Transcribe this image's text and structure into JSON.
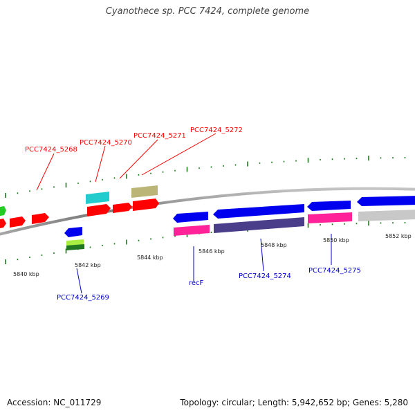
{
  "title": "Cyanothece sp. PCC 7424, complete genome",
  "footer": {
    "accession": "Accession: NC_011729",
    "topology": "Topology: circular; Length: 5,942,652 bp; Genes: 5,280"
  },
  "ticks": [
    {
      "id": "t5840",
      "label": "5840 kbp"
    },
    {
      "id": "t5842",
      "label": "5842 kbp"
    },
    {
      "id": "t5844",
      "label": "5844 kbp"
    },
    {
      "id": "t5846",
      "label": "5846 kbp"
    },
    {
      "id": "t5848",
      "label": "5848 kbp"
    },
    {
      "id": "t5850",
      "label": "5850 kbp"
    },
    {
      "id": "t5852",
      "label": "5852 kbp"
    }
  ],
  "genes_forward": [
    {
      "id": "PCC7424_5268",
      "label": "PCC7424_5268",
      "color": "#ff0000"
    },
    {
      "id": "PCC7424_5270",
      "label": "PCC7424_5270",
      "color": "#ff0000"
    },
    {
      "id": "PCC7424_5271",
      "label": "PCC7424_5271",
      "color": "#ff0000"
    },
    {
      "id": "PCC7424_5272",
      "label": "PCC7424_5272",
      "color": "#ff0000"
    }
  ],
  "genes_reverse": [
    {
      "id": "PCC7424_5269",
      "label": "PCC7424_5269",
      "color": "#0000cc"
    },
    {
      "id": "recF",
      "label": "recF",
      "color": "#0000cc"
    },
    {
      "id": "PCC7424_5274",
      "label": "PCC7424_5274",
      "color": "#0000cc"
    },
    {
      "id": "PCC7424_5275",
      "label": "PCC7424_5275",
      "color": "#0000cc"
    }
  ],
  "colors": {
    "forward_label": "#ff0000",
    "reverse_label": "#0000cc",
    "backbone": "#888888",
    "gc_ticks": "#1a7a1a",
    "red": "#ff0000",
    "cyan": "#22cccc",
    "olive": "#bbb577",
    "green": "#22cc22",
    "blue": "#0000ee",
    "magenta": "#ff2299",
    "purple": "#4a3d8a",
    "lime": "#aaee44",
    "darkgreen": "#227722",
    "grey": "#c8c8c8"
  }
}
